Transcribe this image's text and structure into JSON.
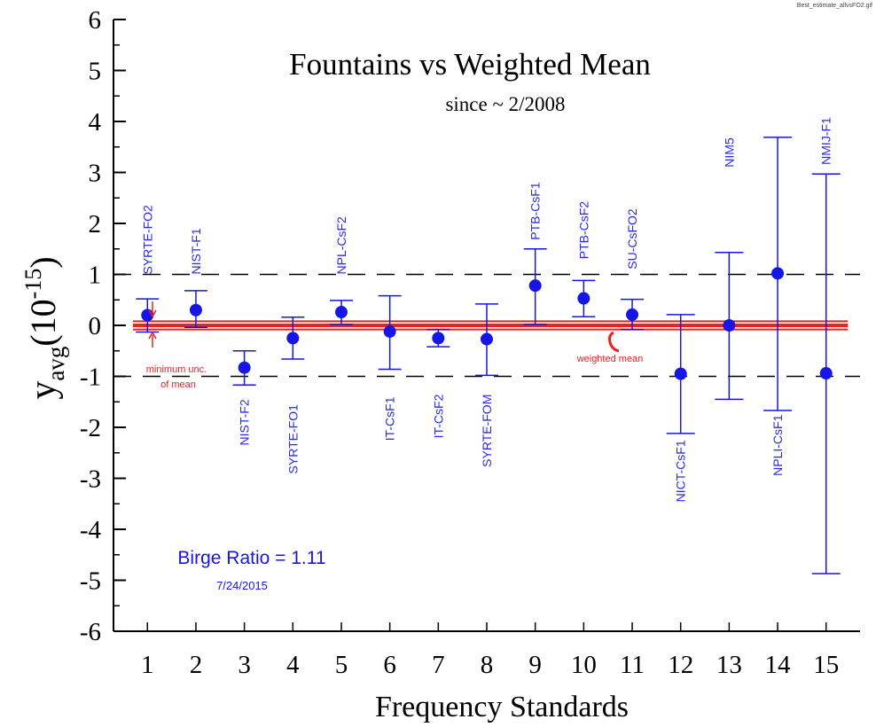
{
  "file_tag": "Best_estimate_allvsFO2.gif",
  "chart_data": {
    "type": "scatter",
    "title": "Fountains vs Weighted Mean",
    "subtitle": "since ~ 2/2008",
    "xlabel": "Frequency Standards",
    "ylabel_main": "y",
    "ylabel_sub": "avg",
    "ylabel_unit_base": "(10",
    "ylabel_unit_exp": "-15",
    "ylabel_unit_close": ")",
    "ylim": [
      -6,
      6
    ],
    "xlim": [
      0.3,
      15.7
    ],
    "x_ticks": [
      1,
      2,
      3,
      4,
      5,
      6,
      7,
      8,
      9,
      10,
      11,
      12,
      13,
      14,
      15
    ],
    "y_ticks": [
      6,
      5,
      4,
      3,
      2,
      1,
      0,
      -1,
      -2,
      -3,
      -4,
      -5,
      -6
    ],
    "reference_lines": [
      1,
      -1
    ],
    "points": [
      {
        "x": 1,
        "y": 0.2,
        "lo": -0.13,
        "hi": 0.52,
        "label": "SYRTE-FO2",
        "label_pos": "above"
      },
      {
        "x": 2,
        "y": 0.3,
        "lo": -0.04,
        "hi": 0.68,
        "label": "NIST-F1",
        "label_pos": "above"
      },
      {
        "x": 3,
        "y": -0.83,
        "lo": -1.17,
        "hi": -0.5,
        "label": "NIST-F2",
        "label_pos": "below"
      },
      {
        "x": 4,
        "y": -0.25,
        "lo": -0.66,
        "hi": 0.16,
        "label": "SYRTE-FO1",
        "label_pos": "below"
      },
      {
        "x": 5,
        "y": 0.26,
        "lo": 0.02,
        "hi": 0.49,
        "label": "NPL-CsF2",
        "label_pos": "above"
      },
      {
        "x": 6,
        "y": -0.12,
        "lo": -0.86,
        "hi": 0.58,
        "label": "IT-CsF1",
        "label_pos": "below"
      },
      {
        "x": 7,
        "y": -0.25,
        "lo": -0.42,
        "hi": -0.08,
        "label": "IT-CsF2",
        "label_pos": "below"
      },
      {
        "x": 8,
        "y": -0.27,
        "lo": -0.98,
        "hi": 0.42,
        "label": "SYRTE-FOM",
        "label_pos": "below"
      },
      {
        "x": 9,
        "y": 0.78,
        "lo": 0.02,
        "hi": 1.5,
        "label": "PTB-CsF1",
        "label_pos": "above"
      },
      {
        "x": 10,
        "y": 0.53,
        "lo": 0.17,
        "hi": 0.88,
        "label": "PTB-CsF2",
        "label_pos": "above"
      },
      {
        "x": 11,
        "y": 0.21,
        "lo": -0.08,
        "hi": 0.51,
        "label": "SU-CsFO2",
        "label_pos": "above"
      },
      {
        "x": 12,
        "y": -0.95,
        "lo": -2.12,
        "hi": 0.21,
        "label": "NICT-CsF1",
        "label_pos": "below"
      },
      {
        "x": 13,
        "y": 0.0,
        "lo": -1.45,
        "hi": 1.43,
        "label": "NIM5",
        "label_pos": "above"
      },
      {
        "x": 14,
        "y": 1.02,
        "lo": -1.67,
        "hi": 3.69,
        "label": "NPLI-CsF1",
        "label_pos": "below"
      },
      {
        "x": 15,
        "y": -0.94,
        "lo": -4.87,
        "hi": 2.97,
        "label": "NMIJ-F1",
        "label_pos": "above"
      }
    ],
    "weighted_mean": {
      "value": 0.0,
      "band_half_width": 0.08,
      "label": "weighted mean"
    },
    "min_unc_annotation": {
      "line1": "minimum unc.",
      "line2": "of mean"
    },
    "birge_ratio_text": "Birge Ratio = 1.11",
    "date_text": "7/24/2015",
    "colors": {
      "points": "#1515e6",
      "labels": "#2a2ae8",
      "mean_band": "#ee2020",
      "axes": "#000000",
      "reference": "#000000"
    }
  }
}
